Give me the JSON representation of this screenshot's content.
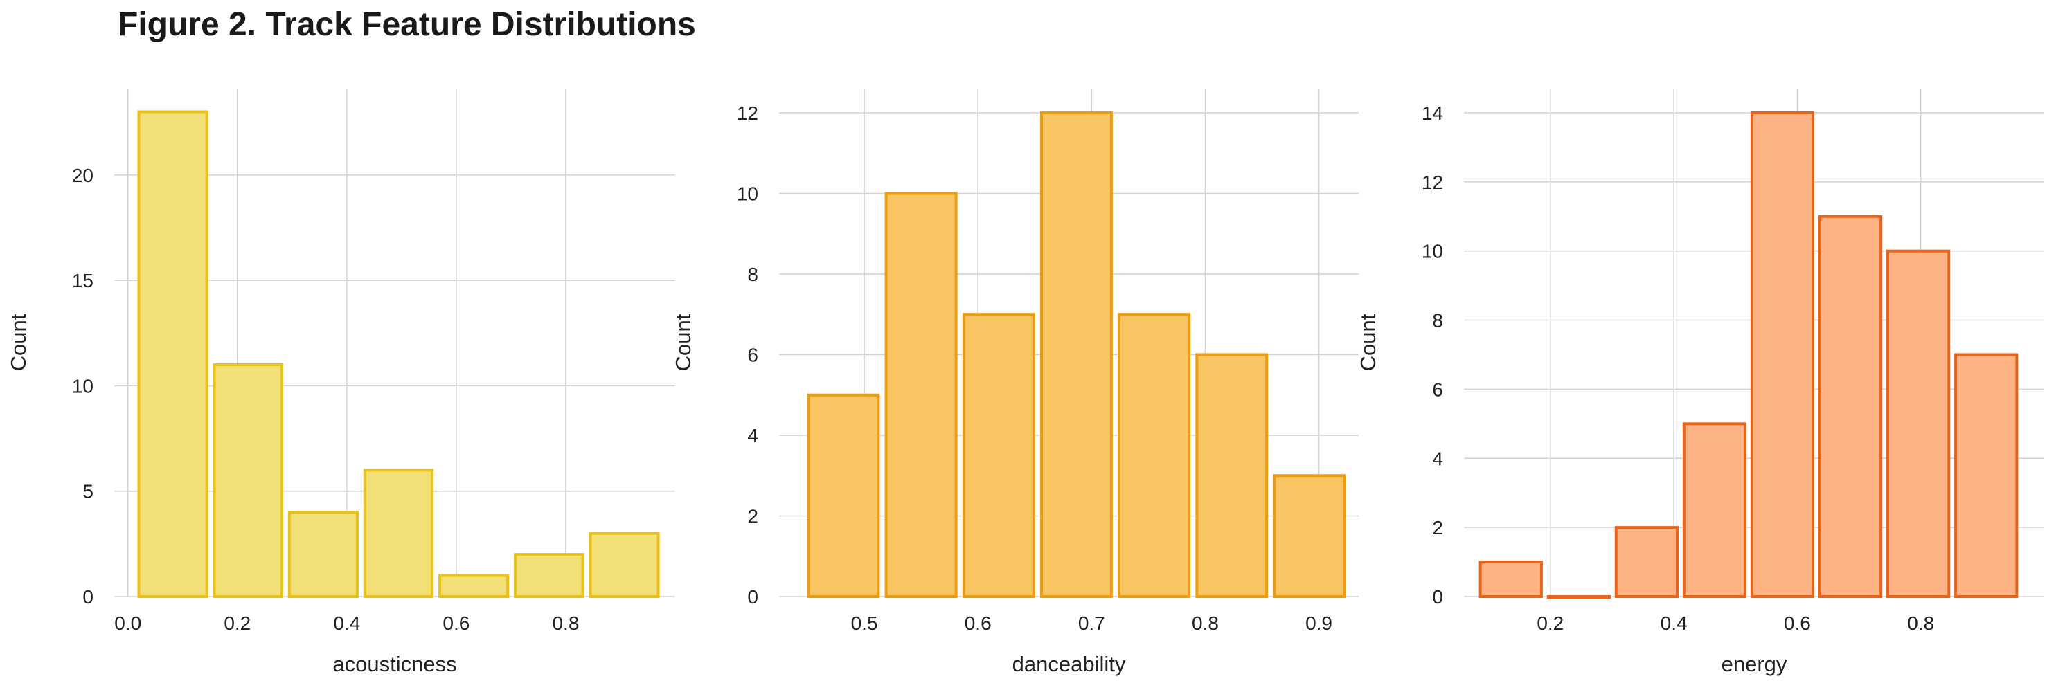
{
  "figure": {
    "title": "Figure 2. Track Feature Distributions"
  },
  "chart_data": [
    {
      "type": "bar",
      "xlabel": "acousticness",
      "ylabel": "Count",
      "xlim": [
        -0.025,
        1.0
      ],
      "ylim": [
        0,
        24.1
      ],
      "xticks": [
        0.0,
        0.2,
        0.4,
        0.6,
        0.8
      ],
      "xtick_labels": [
        "0.0",
        "0.2",
        "0.4",
        "0.6",
        "0.8"
      ],
      "yticks": [
        0,
        5,
        10,
        15,
        20
      ],
      "ytick_labels": [
        "0",
        "5",
        "10",
        "15",
        "20"
      ],
      "bin_edges": [
        0.013,
        0.151,
        0.288,
        0.426,
        0.563,
        0.701,
        0.838,
        0.976
      ],
      "values": [
        23,
        11,
        4,
        6,
        1,
        2,
        3
      ],
      "fill": "#f2e076",
      "stroke": "#e8c21a",
      "grid": true
    },
    {
      "type": "bar",
      "xlabel": "danceability",
      "ylabel": "Count",
      "xlim": [
        0.425,
        0.935
      ],
      "ylim": [
        0,
        12.6
      ],
      "xticks": [
        0.5,
        0.6,
        0.7,
        0.8,
        0.9
      ],
      "xtick_labels": [
        "0.5",
        "0.6",
        "0.7",
        "0.8",
        "0.9"
      ],
      "yticks": [
        0,
        2,
        4,
        6,
        8,
        10,
        12
      ],
      "ytick_labels": [
        "0",
        "2",
        "4",
        "6",
        "8",
        "10",
        "12"
      ],
      "bin_edges": [
        0.4475,
        0.5158,
        0.5842,
        0.6525,
        0.7208,
        0.7892,
        0.8575,
        0.9258
      ],
      "values": [
        5,
        10,
        7,
        12,
        7,
        6,
        3
      ],
      "fill": "#f7c663",
      "stroke": "#eb9c12",
      "grid": true
    },
    {
      "type": "bar",
      "xlabel": "energy",
      "ylabel": "Count",
      "xlim": [
        0.06,
        1.0
      ],
      "ylim": [
        0,
        14.7
      ],
      "xticks": [
        0.2,
        0.4,
        0.6,
        0.8
      ],
      "xtick_labels": [
        "0.2",
        "0.4",
        "0.6",
        "0.8"
      ],
      "yticks": [
        0,
        2,
        4,
        6,
        8,
        10,
        12,
        14
      ],
      "ytick_labels": [
        "0",
        "2",
        "4",
        "6",
        "8",
        "10",
        "12",
        "14"
      ],
      "bin_edges": [
        0.081,
        0.191,
        0.301,
        0.411,
        0.521,
        0.631,
        0.741,
        0.851,
        0.961
      ],
      "values": [
        1,
        0,
        2,
        5,
        14,
        11,
        10,
        7
      ],
      "fill": "#fdb384",
      "stroke": "#e8641a",
      "grid": true
    }
  ]
}
